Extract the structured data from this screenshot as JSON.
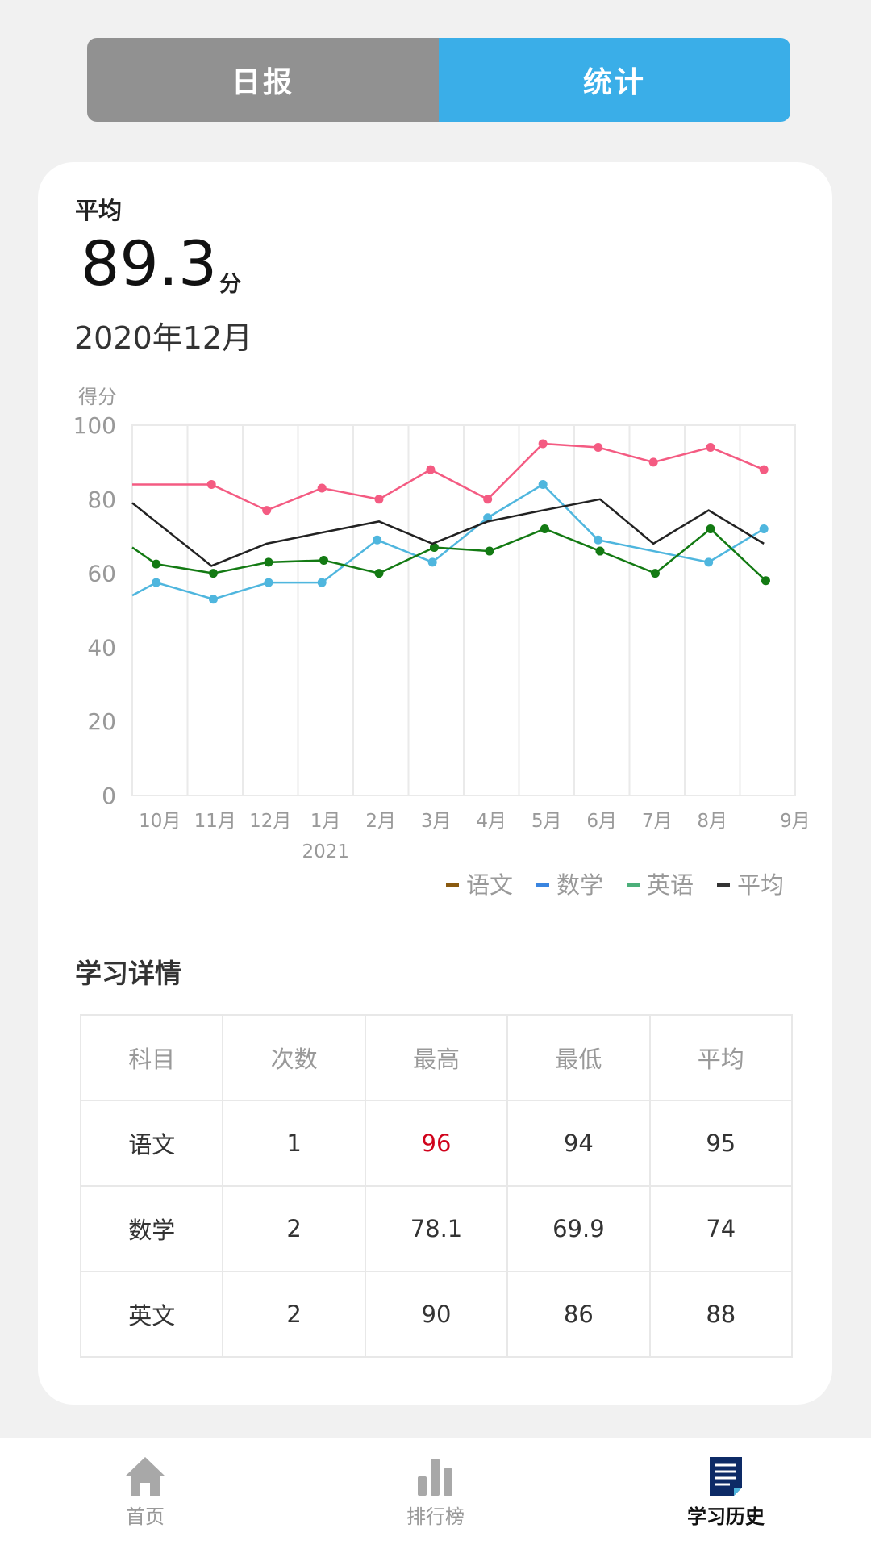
{
  "toggle": {
    "left": "日报",
    "right": "统计",
    "active": "统计"
  },
  "summary": {
    "label": "平均",
    "value": "89.3",
    "unit": "分",
    "period": "2020年12月"
  },
  "chart_data": {
    "type": "line",
    "ylabel": "得分",
    "ylim": [
      0,
      100
    ],
    "yticks": [
      0,
      20,
      40,
      60,
      80,
      100
    ],
    "xticks": [
      "10月",
      "11月",
      "12月",
      "1月",
      "2月",
      "3月",
      "4月",
      "5月",
      "6月",
      "7月",
      "8月",
      "9月"
    ],
    "xsublabel": "2021",
    "grid": true,
    "legend_position": "bottom-right",
    "legend": [
      {
        "name": "语文",
        "color": "#8a5a10"
      },
      {
        "name": "数学",
        "color": "#3a85e0"
      },
      {
        "name": "英语",
        "color": "#4caf7a"
      },
      {
        "name": "平均",
        "color": "#333333"
      }
    ],
    "series": [
      {
        "color": "#f45b82",
        "markers": true,
        "points": [
          [
            "2020-10-01",
            84
          ],
          [
            "2020-11-14",
            84
          ],
          [
            "2020-12-14",
            77
          ],
          [
            "2021-01-14",
            83
          ],
          [
            "2021-02-15",
            80
          ],
          [
            "2021-03-13",
            88
          ],
          [
            "2021-04-14",
            80
          ],
          [
            "2021-05-14",
            95
          ],
          [
            "2021-06-14",
            94
          ],
          [
            "2021-07-14",
            90
          ],
          [
            "2021-08-15",
            94
          ],
          [
            "2021-09-14",
            88
          ]
        ]
      },
      {
        "color": "#4fb6de",
        "markers": true,
        "points": [
          [
            "2020-10-01",
            54
          ],
          [
            "2020-10-14",
            57.5
          ],
          [
            "2020-11-15",
            53
          ],
          [
            "2020-12-15",
            57.5
          ],
          [
            "2021-01-14",
            57.5
          ],
          [
            "2021-02-14",
            69
          ],
          [
            "2021-03-14",
            63
          ],
          [
            "2021-04-14",
            75
          ],
          [
            "2021-05-14",
            84
          ],
          [
            "2021-06-14",
            69
          ],
          [
            "2021-08-14",
            63
          ],
          [
            "2021-09-14",
            72
          ]
        ]
      },
      {
        "color": "#137a13",
        "markers": true,
        "points": [
          [
            "2020-10-01",
            67
          ],
          [
            "2020-10-14",
            62.5
          ],
          [
            "2020-11-15",
            60
          ],
          [
            "2020-12-15",
            63
          ],
          [
            "2021-01-15",
            63.5
          ],
          [
            "2021-02-15",
            60
          ],
          [
            "2021-03-15",
            67
          ],
          [
            "2021-04-15",
            66
          ],
          [
            "2021-05-15",
            72
          ],
          [
            "2021-06-15",
            66
          ],
          [
            "2021-07-15",
            60
          ],
          [
            "2021-08-15",
            72
          ],
          [
            "2021-09-15",
            58
          ]
        ]
      },
      {
        "color": "#222222",
        "markers": false,
        "points": [
          [
            "2020-10-01",
            79
          ],
          [
            "2020-11-14",
            62
          ],
          [
            "2020-12-14",
            68
          ],
          [
            "2021-01-14",
            71
          ],
          [
            "2021-02-15",
            74
          ],
          [
            "2021-03-14",
            68
          ],
          [
            "2021-04-14",
            74
          ],
          [
            "2021-05-14",
            77
          ],
          [
            "2021-06-15",
            80
          ],
          [
            "2021-07-14",
            68
          ],
          [
            "2021-08-14",
            77
          ],
          [
            "2021-09-14",
            68
          ]
        ]
      }
    ]
  },
  "details": {
    "title": "学习详情",
    "headers": [
      "科目",
      "次数",
      "最高",
      "最低",
      "平均"
    ],
    "rows": [
      [
        "语文",
        "1",
        "96",
        "94",
        "95"
      ],
      [
        "数学",
        "2",
        "78.1",
        "69.9",
        "74"
      ],
      [
        "英文",
        "2",
        "90",
        "86",
        "88"
      ]
    ],
    "highlight_color": "#d0021b"
  },
  "nav": [
    {
      "label": "首页",
      "icon": "home-icon"
    },
    {
      "label": "排行榜",
      "icon": "bar-chart-icon"
    },
    {
      "label": "学习历史",
      "icon": "document-icon",
      "active": true
    }
  ]
}
